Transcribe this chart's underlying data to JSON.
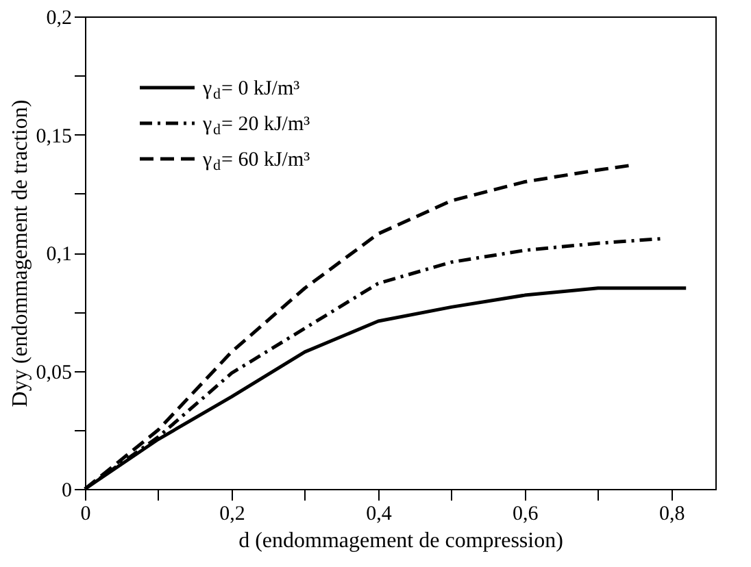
{
  "chart_data": {
    "type": "line",
    "xlabel": "d (endommagement de compression)",
    "ylabel": "Dyy (endommagement de traction)",
    "xlim": [
      0,
      0.86
    ],
    "ylim": [
      0,
      0.2
    ],
    "xticks": [
      0,
      {
        "value": 0.1,
        "label": null
      },
      {
        "value": 0.2,
        "label": "0,2"
      },
      {
        "value": 0.3,
        "label": null
      },
      {
        "value": 0.4,
        "label": "0,4"
      },
      {
        "value": 0.5,
        "label": null
      },
      {
        "value": 0.6,
        "label": "0,6"
      },
      {
        "value": 0.7,
        "label": null
      },
      {
        "value": 0.8,
        "label": "0,8"
      }
    ],
    "yticks": [
      0,
      {
        "value": 0.025,
        "label": null
      },
      {
        "value": 0.05,
        "label": "0,05"
      },
      {
        "value": 0.075,
        "label": null
      },
      {
        "value": 0.1,
        "label": "0,1"
      },
      {
        "value": 0.125,
        "label": null
      },
      {
        "value": 0.15,
        "label": "0,15"
      },
      {
        "value": 0.175,
        "label": null
      },
      {
        "value": 0.2,
        "label": "0,2"
      }
    ],
    "grid": false,
    "legend": "top left",
    "marker": "none",
    "series": [
      {
        "name": "γ$_{d}$= 0 kJ/m³",
        "color": "#000000",
        "line_style": "solid",
        "x": [
          0,
          0.1,
          0.2,
          0.3,
          0.4,
          0.5,
          0.6,
          0.7,
          0.82
        ],
        "values": [
          0,
          0.021,
          0.039,
          0.058,
          0.071,
          0.077,
          0.082,
          0.085,
          0.085
        ]
      },
      {
        "name": "γ$_{d}$= 20 kJ/m³",
        "color": "#000000",
        "line_style": "dashdot",
        "x": [
          0,
          0.1,
          0.2,
          0.3,
          0.4,
          0.5,
          0.6,
          0.7,
          0.79
        ],
        "values": [
          0,
          0.022,
          0.049,
          0.068,
          0.087,
          0.096,
          0.101,
          0.104,
          0.106
        ]
      },
      {
        "name": "γ$_{d}$= 60 kJ/m³",
        "color": "#000000",
        "line_style": "dashed",
        "x": [
          0,
          0.1,
          0.2,
          0.3,
          0.4,
          0.5,
          0.6,
          0.7,
          0.745
        ],
        "values": [
          0,
          0.025,
          0.058,
          0.085,
          0.108,
          0.122,
          0.13,
          0.135,
          0.137
        ]
      }
    ]
  }
}
